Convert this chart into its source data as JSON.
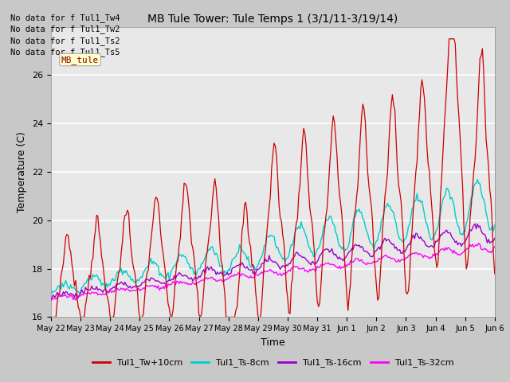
{
  "title": "MB Tule Tower: Tule Temps 1 (3/1/11-3/19/14)",
  "xlabel": "Time",
  "ylabel": "Temperature (C)",
  "ylim": [
    16,
    28
  ],
  "yticks": [
    16,
    18,
    20,
    22,
    24,
    26
  ],
  "legend_labels": [
    "Tul1_Tw+10cm",
    "Tul1_Ts-8cm",
    "Tul1_Ts-16cm",
    "Tul1_Ts-32cm"
  ],
  "legend_colors": [
    "#cc0000",
    "#00cccc",
    "#9900cc",
    "#ff00ff"
  ],
  "no_data_texts": [
    "No data for f Tul1_Tw4",
    "No data for f Tul1_Tw2",
    "No data for f Tul1_Ts2",
    "No data for f Tul1_Ts5"
  ],
  "xtick_labels": [
    "May 22",
    "May 23",
    "May 24",
    "May 25",
    "May 26",
    "May 27",
    "May 28",
    "May 29",
    "May 30",
    "May 31",
    "Jun 1",
    "Jun 2",
    "Jun 3",
    "Jun 4",
    "Jun 5",
    "Jun 6"
  ],
  "tooltip_text": "MB_tule",
  "figsize": [
    6.4,
    4.8
  ],
  "dpi": 100
}
